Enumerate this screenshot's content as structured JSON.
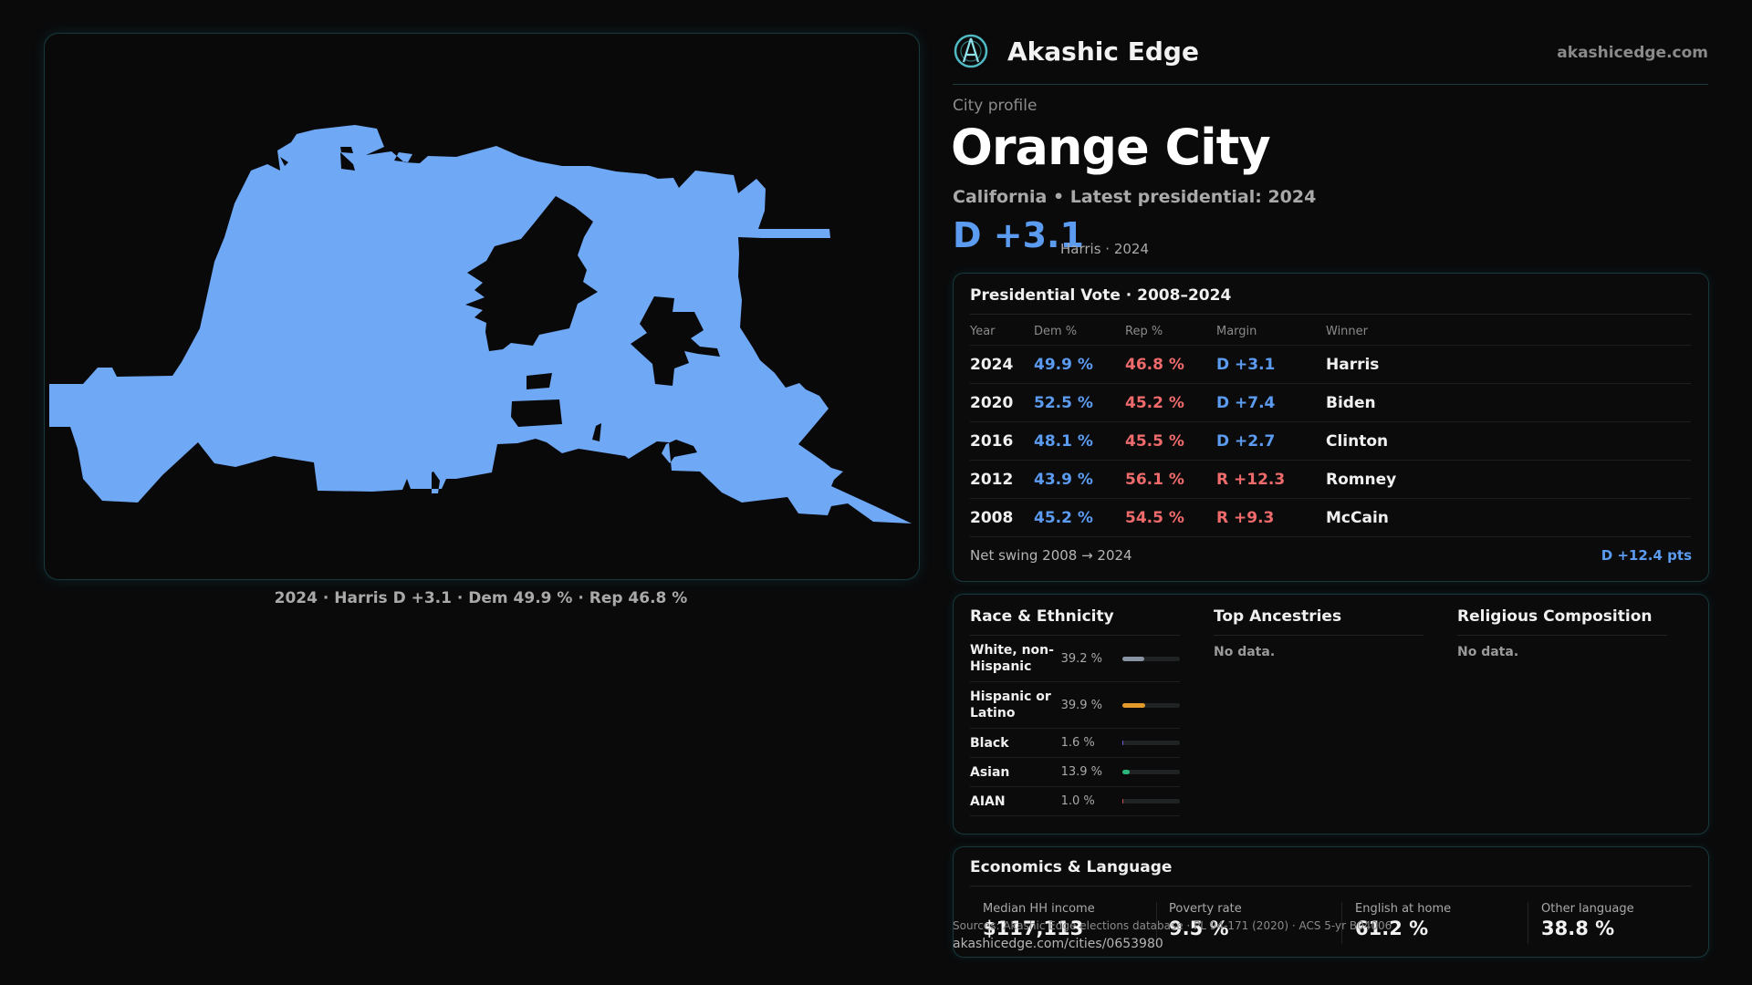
{
  "brand": {
    "name": "Akashic Edge",
    "site": "akashicedge.com"
  },
  "profile": {
    "kicker": "City profile",
    "city": "Orange City",
    "subtitle": "California • Latest presidential: 2024",
    "margin": "D +3.1",
    "margin_note": "Harris · 2024"
  },
  "map": {
    "fill_color": "#6fa8f5",
    "caption": "2024 · Harris D +3.1 · Dem 49.9 % · Rep 46.8 %"
  },
  "votes": {
    "title": "Presidential Vote · 2008–2024",
    "headers": [
      "Year",
      "Dem %",
      "Rep %",
      "Margin",
      "Winner"
    ],
    "rows": [
      {
        "year": "2024",
        "dem": "49.9 %",
        "rep": "46.8 %",
        "margin": "D +3.1",
        "party": "D",
        "winner": "Harris"
      },
      {
        "year": "2020",
        "dem": "52.5 %",
        "rep": "45.2 %",
        "margin": "D +7.4",
        "party": "D",
        "winner": "Biden"
      },
      {
        "year": "2016",
        "dem": "48.1 %",
        "rep": "45.5 %",
        "margin": "D +2.7",
        "party": "D",
        "winner": "Clinton"
      },
      {
        "year": "2012",
        "dem": "43.9 %",
        "rep": "56.1 %",
        "margin": "R +12.3",
        "party": "R",
        "winner": "Romney"
      },
      {
        "year": "2008",
        "dem": "45.2 %",
        "rep": "54.5 %",
        "margin": "R +9.3",
        "party": "R",
        "winner": "McCain"
      }
    ],
    "swing_label": "Net swing 2008 → 2024",
    "swing_value": "D +12.4 pts"
  },
  "race": {
    "title": "Race & Ethnicity",
    "rows": [
      {
        "name": "White, non-Hispanic",
        "pct": "39.2 %",
        "value": 39.2,
        "color": "#8a93a3"
      },
      {
        "name": "Hispanic or Latino",
        "pct": "39.9 %",
        "value": 39.9,
        "color": "#e39a2b"
      },
      {
        "name": "Black",
        "pct": "1.6 %",
        "value": 1.6,
        "color": "#7a5ad8"
      },
      {
        "name": "Asian",
        "pct": "13.9 %",
        "value": 13.9,
        "color": "#2bb57a"
      },
      {
        "name": "AIAN",
        "pct": "1.0 %",
        "value": 1.0,
        "color": "#c9524a"
      }
    ]
  },
  "ancestries": {
    "title": "Top Ancestries",
    "text": "No data."
  },
  "religion": {
    "title": "Religious Composition",
    "text": "No data."
  },
  "econ": {
    "title": "Economics & Language",
    "stats": [
      {
        "label": "Median HH income",
        "value": "$117,113"
      },
      {
        "label": "Poverty rate",
        "value": "9.5 %"
      },
      {
        "label": "English at home",
        "value": "61.2 %"
      },
      {
        "label": "Other language",
        "value": "38.8 %"
      }
    ]
  },
  "footer": {
    "source": "Sources: Akashic Edge elections database · PL 94-171 (2020) · ACS 5-yr B04006",
    "url": "akashicedge.com/cities/0653980"
  }
}
